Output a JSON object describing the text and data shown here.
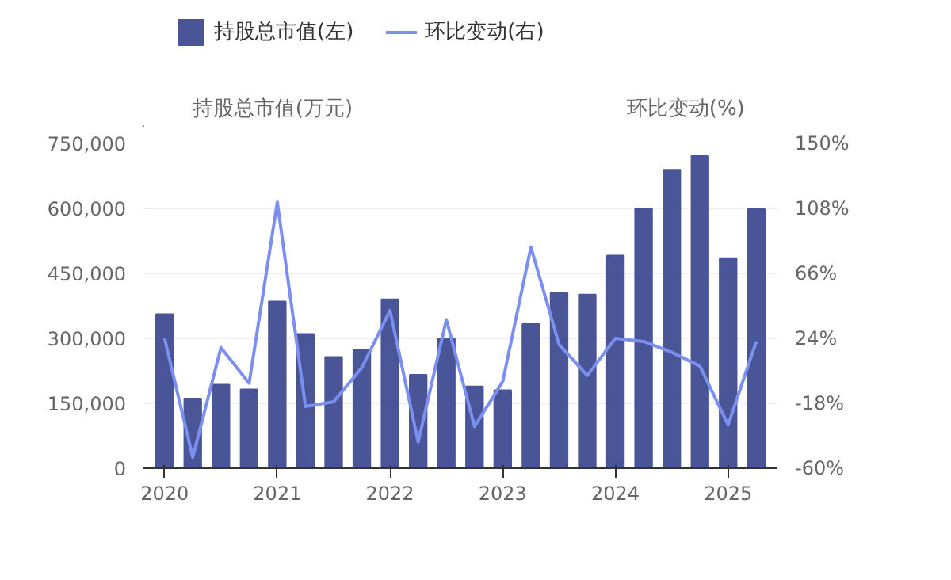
{
  "chart_data": {
    "type": "bar",
    "categories": [
      "2020",
      null,
      null,
      null,
      "2021",
      null,
      null,
      null,
      "2022",
      null,
      null,
      null,
      "2023",
      null,
      null,
      null,
      "2024",
      null,
      null,
      null,
      "2025",
      null
    ],
    "ylabel": "持股总市值(万元)",
    "y2label": "环比变动(%)",
    "series": [
      {
        "name": "持股总市值(左)",
        "color": "#4a5597",
        "values": [
          356000,
          161000,
          193000,
          182000,
          385000,
          310000,
          257000,
          273000,
          390000,
          216000,
          299000,
          189000,
          180000,
          333000,
          405000,
          401000,
          491000,
          600000,
          689000,
          721000,
          485000,
          598000
        ]
      },
      {
        "name": "环比变动(右)",
        "type": "line",
        "axis": "y2",
        "color": "#7b8ff0",
        "values": [
          24,
          -53,
          18,
          -5,
          112,
          -20,
          -17,
          5,
          42,
          -43,
          36,
          -33,
          -4,
          83,
          20,
          0,
          24,
          22,
          15,
          6,
          -32,
          22
        ]
      }
    ],
    "ylim": [
      0,
      750000
    ],
    "yticks": [
      0,
      {
        "value": 150000,
        "label": "150,000"
      },
      {
        "value": 300000,
        "label": "300,000"
      },
      {
        "value": 450000,
        "label": "450,000"
      },
      {
        "value": 600000,
        "label": "600,000"
      },
      {
        "value": 750000,
        "label": "750,000"
      }
    ],
    "y2lim": [
      -60,
      150
    ],
    "y2ticks": [
      {
        "value": -60,
        "label": "-60%"
      },
      {
        "value": -18,
        "label": "-18%"
      },
      {
        "value": 24,
        "label": "24%"
      },
      {
        "value": 66,
        "label": "66%"
      },
      {
        "value": 108,
        "label": "108%"
      },
      {
        "value": 150,
        "label": "150%"
      }
    ],
    "grid": "y",
    "legend": "top left"
  }
}
